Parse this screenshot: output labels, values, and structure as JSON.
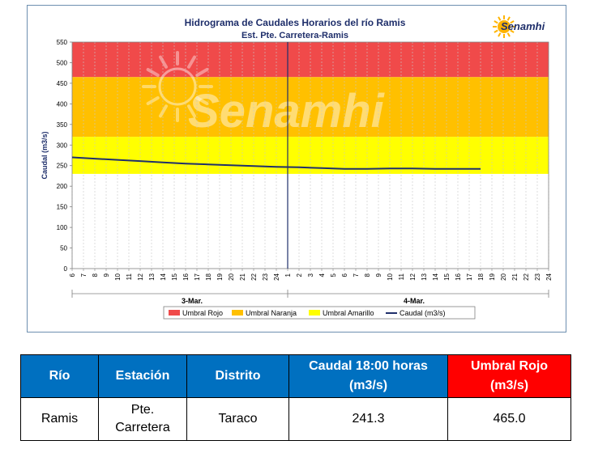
{
  "chart": {
    "title_line1": "Hidrograma de Caudales Horarios del río Ramis",
    "title_line2": "Est. Pte. Carretera-Ramis",
    "logo_text": "Senamhi",
    "watermark_text": "Senamhi",
    "colors": {
      "rojo": "#f04a4a",
      "naranja": "#ffc000",
      "amarillo": "#ffff00",
      "caudal": "#1f2f6b",
      "marker": "#1f2f6b"
    }
  },
  "chart_data": {
    "type": "line",
    "ylabel": "Caudal (m3/s)",
    "ylim": [
      0,
      550
    ],
    "yticks": [
      0,
      50,
      100,
      150,
      200,
      250,
      300,
      350,
      400,
      450,
      500,
      550
    ],
    "x_tick_labels": [
      "6",
      "7",
      "8",
      "9",
      "10",
      "11",
      "12",
      "13",
      "14",
      "15",
      "16",
      "17",
      "18",
      "19",
      "20",
      "21",
      "22",
      "23",
      "24",
      "1",
      "2",
      "3",
      "4",
      "5",
      "6",
      "7",
      "8",
      "9",
      "10",
      "11",
      "12",
      "13",
      "14",
      "15",
      "16",
      "17",
      "18",
      "19",
      "20",
      "21",
      "22",
      "23",
      "24"
    ],
    "day_labels": [
      "3-Mar.",
      "4-Mar."
    ],
    "thresholds": {
      "rojo": [
        465,
        550
      ],
      "naranja": [
        320,
        465
      ],
      "amarillo": [
        230,
        320
      ]
    },
    "current_time_index": 19,
    "legend": [
      "Umbral Rojo",
      "Umbral Naranja",
      "Umbral Amarillo",
      "Caudal (m3/s)"
    ],
    "series": [
      {
        "name": "Caudal (m3/s)",
        "x_index": [
          0,
          2,
          4,
          6,
          8,
          10,
          12,
          14,
          16,
          18,
          20,
          22,
          24,
          26,
          28,
          30,
          32,
          34,
          36
        ],
        "values": [
          270,
          267,
          264,
          261,
          258,
          255,
          253,
          251,
          249,
          247,
          246,
          244,
          242,
          242,
          243,
          243,
          242,
          242,
          242
        ]
      }
    ]
  },
  "table": {
    "headers": [
      "Río",
      "Estación",
      "Distrito",
      "Caudal  18:00 horas (m3/s)",
      "Umbral Rojo (m3/s)"
    ],
    "row": [
      "Ramis",
      "Pte. Carretera",
      "Taraco",
      "241.3",
      "465.0"
    ]
  }
}
